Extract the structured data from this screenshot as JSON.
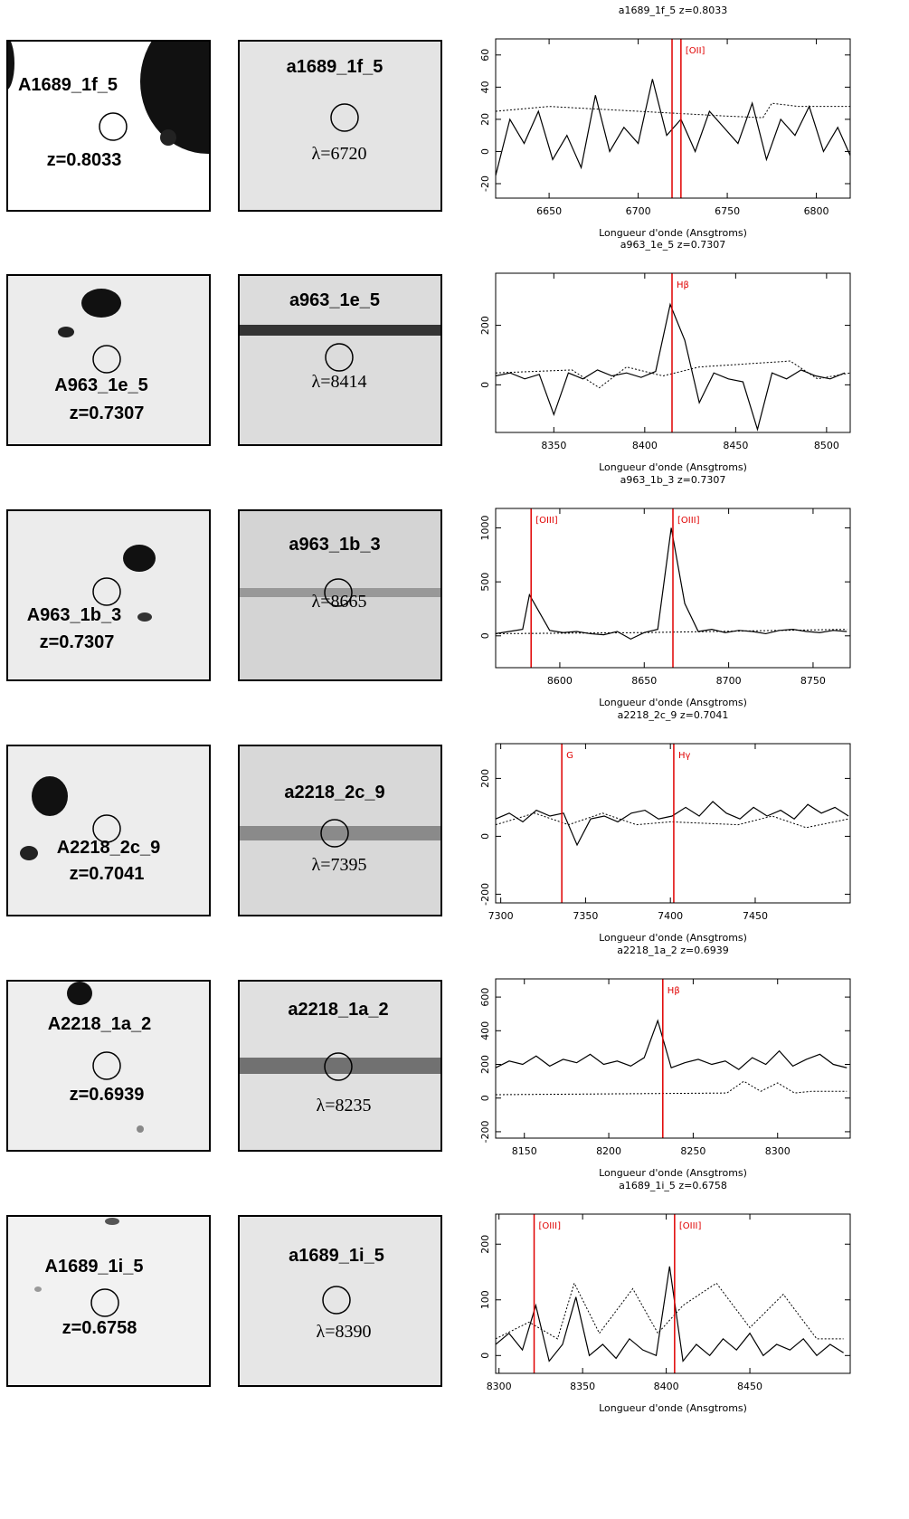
{
  "rows": [
    {
      "image_label": "A1689_1f_5",
      "image_z": "z=0.8033",
      "slit_label": "a1689_1f_5",
      "slit_lambda": "λ=6720",
      "chart": {
        "type": "line",
        "title": "a1689_1f_5  z=0.8033",
        "xlabel": "Longueur d'onde (Ansgtroms)",
        "xlim": [
          6620,
          6819
        ],
        "ylim": [
          -29,
          70
        ],
        "xticks": [
          6650,
          6700,
          6750,
          6800
        ],
        "yticks": [
          -20,
          0,
          20,
          40,
          60
        ],
        "lines": [
          {
            "x": 6719
          },
          {
            "x": 6724,
            "label": "[OII]"
          }
        ],
        "spectrum": {
          "x": [
            6620,
            6628,
            6636,
            6644,
            6652,
            6660,
            6668,
            6676,
            6684,
            6692,
            6700,
            6708,
            6716,
            6724,
            6732,
            6740,
            6748,
            6756,
            6764,
            6772,
            6780,
            6788,
            6796,
            6804,
            6812,
            6820
          ],
          "y": [
            -15,
            20,
            5,
            25,
            -5,
            10,
            -10,
            35,
            0,
            15,
            5,
            45,
            10,
            20,
            0,
            25,
            15,
            5,
            30,
            -5,
            20,
            10,
            28,
            0,
            15,
            -5
          ]
        },
        "sky": {
          "x": [
            6620,
            6650,
            6700,
            6750,
            6770,
            6775,
            6790,
            6820
          ],
          "y": [
            25,
            28,
            25,
            22,
            21,
            30,
            28,
            28
          ]
        }
      }
    },
    {
      "image_label": "A963_1e_5",
      "image_z": "z=0.7307",
      "slit_label": "a963_1e_5",
      "slit_lambda": "λ=8414",
      "chart": {
        "type": "line",
        "title": "a963_1e_5  z=0.7307",
        "xlabel": "Longueur d'onde (Ansgtroms)",
        "xlim": [
          8318,
          8513
        ],
        "ylim": [
          -160,
          375
        ],
        "xticks": [
          8350,
          8400,
          8450,
          8500
        ],
        "yticks": [
          0,
          200
        ],
        "lines": [
          {
            "x": 8415,
            "label": "Hβ"
          }
        ],
        "spectrum": {
          "x": [
            8318,
            8326,
            8334,
            8342,
            8350,
            8358,
            8366,
            8374,
            8382,
            8390,
            8398,
            8406,
            8414,
            8422,
            8430,
            8438,
            8446,
            8454,
            8462,
            8470,
            8478,
            8486,
            8494,
            8502,
            8510
          ],
          "y": [
            30,
            40,
            20,
            35,
            -100,
            40,
            20,
            50,
            30,
            40,
            25,
            45,
            270,
            150,
            -60,
            40,
            20,
            10,
            -150,
            40,
            20,
            50,
            30,
            20,
            40
          ]
        },
        "sky": {
          "x": [
            8318,
            8360,
            8375,
            8390,
            8410,
            8430,
            8480,
            8495,
            8513
          ],
          "y": [
            40,
            50,
            -10,
            60,
            30,
            60,
            80,
            20,
            40
          ]
        }
      }
    },
    {
      "image_label": "A963_1b_3",
      "image_z": "z=0.7307",
      "slit_label": "a963_1b_3",
      "slit_lambda": "λ=8665",
      "chart": {
        "type": "line",
        "title": "a963_1b_3  z=0.7307",
        "xlabel": "Longueur d'onde (Ansgtroms)",
        "xlim": [
          8562,
          8772
        ],
        "ylim": [
          -295,
          1180
        ],
        "xticks": [
          8600,
          8650,
          8700,
          8750
        ],
        "yticks": [
          0,
          500,
          1000
        ],
        "lines": [
          {
            "x": 8583,
            "label": "[OIII]"
          },
          {
            "x": 8667,
            "label": "[OIII]"
          }
        ],
        "spectrum": {
          "x": [
            8562,
            8570,
            8578,
            8582,
            8594,
            8602,
            8610,
            8618,
            8626,
            8634,
            8642,
            8650,
            8658,
            8666,
            8674,
            8682,
            8690,
            8698,
            8706,
            8714,
            8722,
            8730,
            8738,
            8746,
            8754,
            8762,
            8770
          ],
          "y": [
            20,
            40,
            60,
            380,
            50,
            30,
            40,
            20,
            10,
            40,
            -30,
            30,
            60,
            1000,
            300,
            40,
            60,
            30,
            50,
            40,
            20,
            50,
            60,
            40,
            30,
            50,
            40
          ]
        },
        "sky": {
          "x": [
            8562,
            8650,
            8770
          ],
          "y": [
            20,
            30,
            60
          ]
        }
      }
    },
    {
      "image_label": "A2218_2c_9",
      "image_z": "z=0.7041",
      "slit_label": "a2218_2c_9",
      "slit_lambda": "λ=7395",
      "chart": {
        "type": "line",
        "title": "a2218_2c_9  z=0.7041",
        "xlabel": "Longueur d'onde (Ansgtroms)",
        "xlim": [
          7297,
          7506
        ],
        "ylim": [
          -230,
          320
        ],
        "xticks": [
          7300,
          7350,
          7400,
          7450
        ],
        "yticks": [
          -200,
          0,
          200
        ],
        "lines": [
          {
            "x": 7336,
            "label": "G"
          },
          {
            "x": 7402,
            "label": "Hγ"
          }
        ],
        "spectrum": {
          "x": [
            7297,
            7305,
            7313,
            7321,
            7329,
            7337,
            7345,
            7353,
            7361,
            7369,
            7377,
            7385,
            7393,
            7401,
            7409,
            7417,
            7425,
            7433,
            7441,
            7449,
            7457,
            7465,
            7473,
            7481,
            7489,
            7497,
            7505
          ],
          "y": [
            60,
            80,
            50,
            90,
            70,
            80,
            -30,
            60,
            70,
            50,
            80,
            90,
            60,
            70,
            100,
            70,
            120,
            80,
            60,
            100,
            70,
            90,
            60,
            110,
            80,
            100,
            70
          ]
        },
        "sky": {
          "x": [
            7297,
            7320,
            7340,
            7360,
            7380,
            7400,
            7440,
            7460,
            7480,
            7505
          ],
          "y": [
            40,
            80,
            40,
            80,
            40,
            50,
            40,
            70,
            30,
            60
          ]
        }
      }
    },
    {
      "image_label": "A2218_1a_2",
      "image_z": "z=0.6939",
      "slit_label": "a2218_1a_2",
      "slit_lambda": "λ=8235",
      "chart": {
        "type": "line",
        "title": "a2218_1a_2  z=0.6939",
        "xlabel": "Longueur d'onde (Ansgtroms)",
        "xlim": [
          8133,
          8343
        ],
        "ylim": [
          -238,
          708
        ],
        "xticks": [
          8150,
          8200,
          8250,
          8300
        ],
        "yticks": [
          -200,
          0,
          200,
          400,
          600
        ],
        "lines": [
          {
            "x": 8232,
            "label": "Hβ"
          }
        ],
        "spectrum": {
          "x": [
            8133,
            8141,
            8149,
            8157,
            8165,
            8173,
            8181,
            8189,
            8197,
            8205,
            8213,
            8221,
            8229,
            8237,
            8245,
            8253,
            8261,
            8269,
            8277,
            8285,
            8293,
            8301,
            8309,
            8317,
            8325,
            8333,
            8341
          ],
          "y": [
            180,
            220,
            200,
            250,
            190,
            230,
            210,
            260,
            200,
            220,
            190,
            240,
            460,
            180,
            210,
            230,
            200,
            220,
            170,
            240,
            200,
            280,
            190,
            230,
            260,
            200,
            180
          ]
        },
        "sky": {
          "x": [
            8133,
            8270,
            8280,
            8290,
            8300,
            8310,
            8320,
            8341
          ],
          "y": [
            20,
            30,
            100,
            40,
            90,
            30,
            40,
            40
          ]
        }
      }
    },
    {
      "image_label": "A1689_1i_5",
      "image_z": "z=0.6758",
      "slit_label": "a1689_1i_5",
      "slit_lambda": "λ=8390",
      "chart": {
        "type": "line",
        "title": "a1689_1i_5  z=0.6758",
        "xlabel": "Longueur d'onde (Ansgtroms)",
        "xlim": [
          8298,
          8510
        ],
        "ylim": [
          -32,
          254
        ],
        "xticks": [
          8300,
          8350,
          8400,
          8450
        ],
        "yticks": [
          0,
          100,
          200
        ],
        "lines": [
          {
            "x": 8321,
            "label": "[OIII]"
          },
          {
            "x": 8405,
            "label": "[OIII]"
          }
        ],
        "spectrum": {
          "x": [
            8298,
            8306,
            8314,
            8322,
            8330,
            8338,
            8346,
            8354,
            8362,
            8370,
            8378,
            8386,
            8394,
            8402,
            8410,
            8418,
            8426,
            8434,
            8442,
            8450,
            8458,
            8466,
            8474,
            8482,
            8490,
            8498,
            8506
          ],
          "y": [
            20,
            40,
            10,
            90,
            -10,
            20,
            105,
            0,
            20,
            -5,
            30,
            10,
            0,
            160,
            -10,
            20,
            0,
            30,
            10,
            40,
            0,
            20,
            10,
            30,
            0,
            20,
            5
          ]
        },
        "sky": {
          "x": [
            8298,
            8318,
            8335,
            8345,
            8360,
            8380,
            8395,
            8410,
            8430,
            8450,
            8470,
            8490,
            8506
          ],
          "y": [
            30,
            60,
            30,
            130,
            40,
            120,
            40,
            90,
            130,
            50,
            110,
            30,
            30
          ]
        }
      }
    }
  ]
}
